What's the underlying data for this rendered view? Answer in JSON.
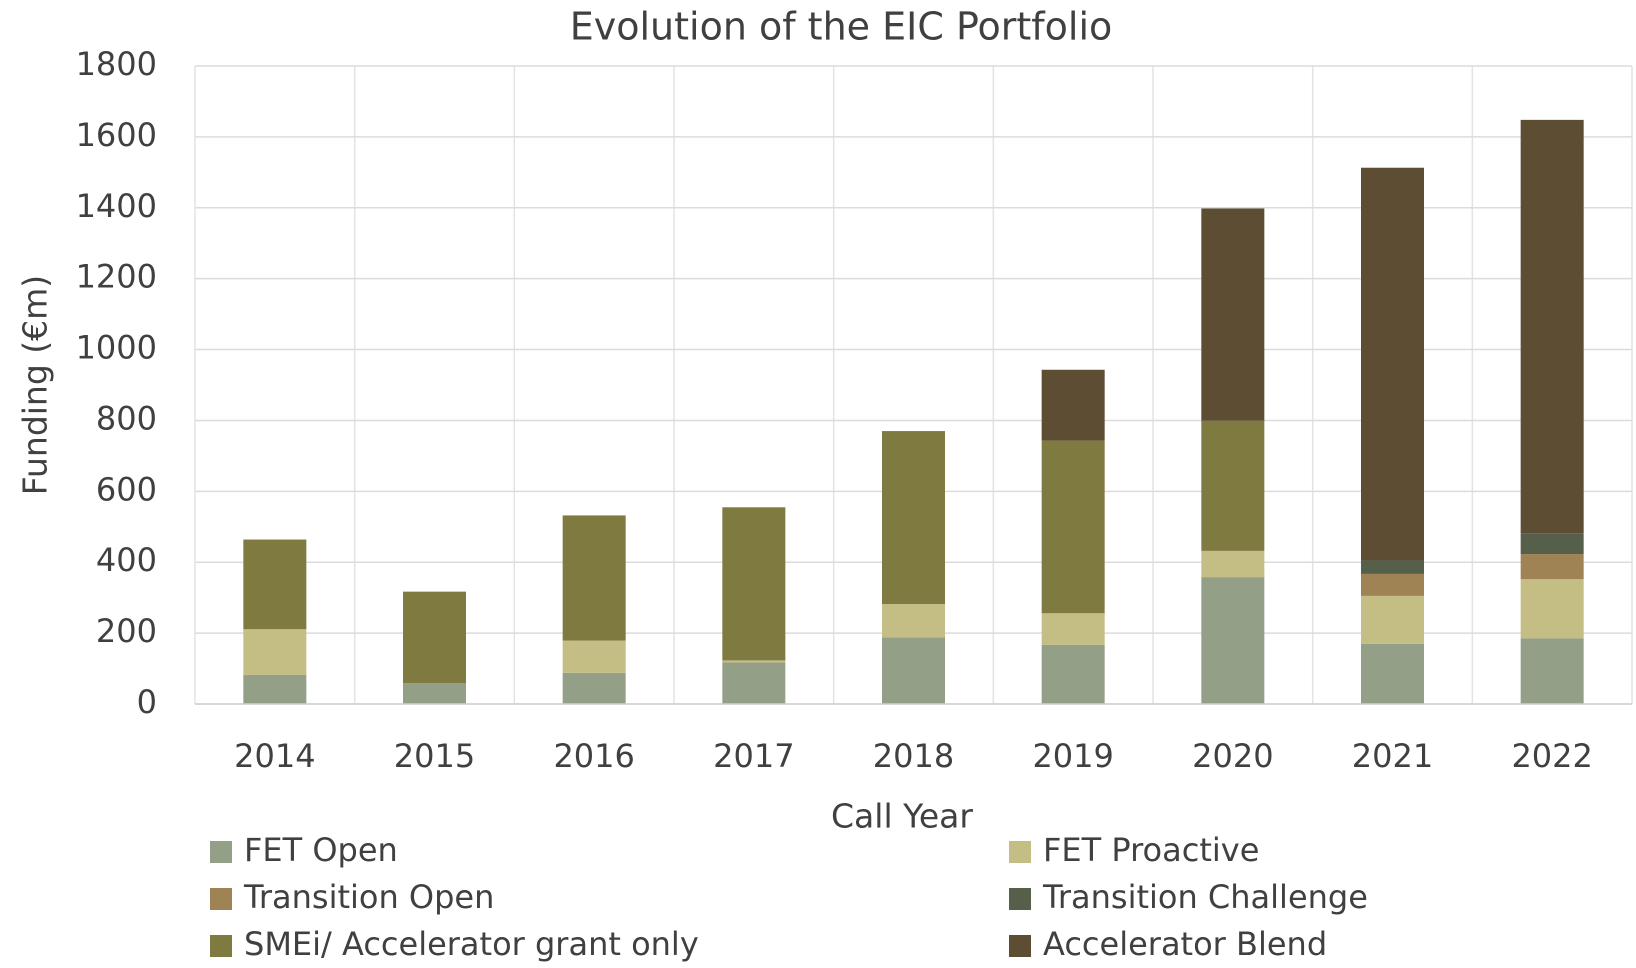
{
  "chart_data": {
    "type": "bar",
    "stacked": true,
    "title": "Evolution of the EIC Portfolio",
    "x_label": "Call Year",
    "y_label": "Funding (€m)",
    "categories": [
      "2014",
      "2015",
      "2016",
      "2017",
      "2018",
      "2019",
      "2020",
      "2021",
      "2022"
    ],
    "series": [
      {
        "name": "FET Open",
        "color": "#939f86",
        "values": [
          82,
          59,
          88,
          117,
          188,
          167,
          358,
          170,
          185
        ]
      },
      {
        "name": "FET Proactive",
        "color": "#c4bd84",
        "values": [
          129,
          0,
          91,
          6,
          94,
          89,
          74,
          135,
          167
        ]
      },
      {
        "name": "Transition Open",
        "color": "#a08355",
        "values": [
          0,
          0,
          0,
          0,
          0,
          0,
          0,
          62,
          71
        ]
      },
      {
        "name": "Transition Challenge",
        "color": "#555f4a",
        "values": [
          0,
          0,
          0,
          0,
          0,
          0,
          0,
          38,
          59
        ]
      },
      {
        "name": "SMEi/ Accelerator grant only",
        "color": "#7f7a3f",
        "values": [
          253,
          258,
          353,
          432,
          488,
          487,
          367,
          0,
          0
        ]
      },
      {
        "name": "Accelerator Blend",
        "color": "#5c4d33",
        "values": [
          0,
          0,
          0,
          0,
          0,
          200,
          599,
          1108,
          1166
        ]
      }
    ],
    "ylim": [
      0,
      1800
    ],
    "yticks": [
      0,
      200,
      400,
      600,
      800,
      1000,
      1200,
      1400,
      1600,
      1800
    ],
    "grid": true,
    "legend": "bottom"
  }
}
